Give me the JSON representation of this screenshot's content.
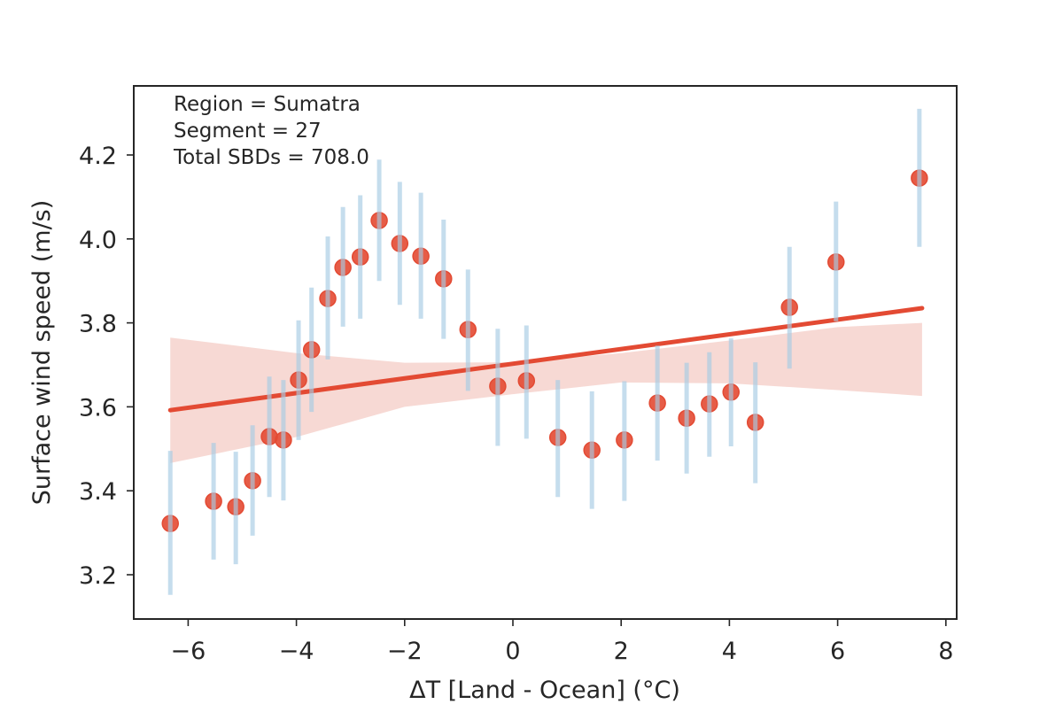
{
  "chart_data": {
    "type": "scatter",
    "title": "",
    "xlabel": "ΔT [Land - Ocean] (°C)",
    "ylabel": "Surface wind speed (m/s)",
    "xlim": [
      -7.0,
      8.25
    ],
    "ylim": [
      3.095,
      4.37
    ],
    "xticks": [
      -6,
      -4,
      -2,
      0,
      2,
      4,
      6,
      8
    ],
    "xtick_labels": [
      "−6",
      "−4",
      "−2",
      "0",
      "2",
      "4",
      "6",
      "8"
    ],
    "yticks": [
      3.2,
      3.4,
      3.6,
      3.8,
      4.0,
      4.2
    ],
    "ytick_labels": [
      "3.2",
      "3.4",
      "3.6",
      "3.8",
      "4.0",
      "4.2"
    ],
    "grid": false,
    "annotation": [
      "Region = Sumatra",
      "Segment = 27",
      "Total SBDs = 708.0"
    ],
    "colors": {
      "points": "#e34a33",
      "errorbars": "#a6cbe3",
      "fit": "#e34a33",
      "ci_band": "#f6d5cf"
    },
    "points": [
      {
        "x": -6.33,
        "y": 3.322,
        "lo": 3.152,
        "hi": 3.495
      },
      {
        "x": -5.53,
        "y": 3.375,
        "lo": 3.236,
        "hi": 3.514
      },
      {
        "x": -5.12,
        "y": 3.362,
        "lo": 3.225,
        "hi": 3.493
      },
      {
        "x": -4.81,
        "y": 3.424,
        "lo": 3.293,
        "hi": 3.556
      },
      {
        "x": -4.5,
        "y": 3.529,
        "lo": 3.385,
        "hi": 3.672
      },
      {
        "x": -4.24,
        "y": 3.521,
        "lo": 3.377,
        "hi": 3.664
      },
      {
        "x": -3.96,
        "y": 3.664,
        "lo": 3.521,
        "hi": 3.806
      },
      {
        "x": -3.72,
        "y": 3.736,
        "lo": 3.588,
        "hi": 3.884
      },
      {
        "x": -3.42,
        "y": 3.858,
        "lo": 3.713,
        "hi": 4.006
      },
      {
        "x": -3.14,
        "y": 3.932,
        "lo": 3.791,
        "hi": 4.076
      },
      {
        "x": -2.82,
        "y": 3.957,
        "lo": 3.81,
        "hi": 4.104
      },
      {
        "x": -2.47,
        "y": 4.044,
        "lo": 3.9,
        "hi": 4.189
      },
      {
        "x": -2.09,
        "y": 3.989,
        "lo": 3.843,
        "hi": 4.136
      },
      {
        "x": -1.7,
        "y": 3.959,
        "lo": 3.81,
        "hi": 4.11
      },
      {
        "x": -1.28,
        "y": 3.905,
        "lo": 3.762,
        "hi": 4.046
      },
      {
        "x": -0.83,
        "y": 3.784,
        "lo": 3.638,
        "hi": 3.927
      },
      {
        "x": -0.28,
        "y": 3.649,
        "lo": 3.507,
        "hi": 3.786
      },
      {
        "x": 0.25,
        "y": 3.662,
        "lo": 3.524,
        "hi": 3.794
      },
      {
        "x": 0.83,
        "y": 3.527,
        "lo": 3.385,
        "hi": 3.664
      },
      {
        "x": 1.46,
        "y": 3.497,
        "lo": 3.357,
        "hi": 3.637
      },
      {
        "x": 2.06,
        "y": 3.521,
        "lo": 3.376,
        "hi": 3.661
      },
      {
        "x": 2.67,
        "y": 3.609,
        "lo": 3.472,
        "hi": 3.746
      },
      {
        "x": 3.21,
        "y": 3.573,
        "lo": 3.441,
        "hi": 3.705
      },
      {
        "x": 3.63,
        "y": 3.607,
        "lo": 3.481,
        "hi": 3.73
      },
      {
        "x": 4.03,
        "y": 3.635,
        "lo": 3.506,
        "hi": 3.763
      },
      {
        "x": 4.48,
        "y": 3.563,
        "lo": 3.418,
        "hi": 3.706
      },
      {
        "x": 5.11,
        "y": 3.837,
        "lo": 3.691,
        "hi": 3.981
      },
      {
        "x": 5.97,
        "y": 3.945,
        "lo": 3.804,
        "hi": 4.089
      },
      {
        "x": 7.51,
        "y": 4.145,
        "lo": 3.981,
        "hi": 4.31
      }
    ],
    "fit": {
      "x": [
        -6.33,
        7.56
      ],
      "y": [
        3.592,
        3.835
      ]
    },
    "ci_band": {
      "x": [
        -6.33,
        -4.0,
        -2.0,
        0.0,
        2.0,
        4.0,
        6.0,
        7.56
      ],
      "upper": [
        3.765,
        3.728,
        3.705,
        3.706,
        3.728,
        3.758,
        3.79,
        3.8
      ],
      "lower": [
        3.466,
        3.528,
        3.6,
        3.63,
        3.658,
        3.656,
        3.64,
        3.626
      ]
    }
  }
}
